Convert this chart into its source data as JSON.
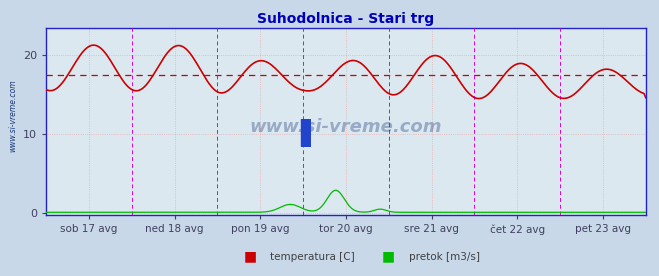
{
  "title": "Suhodolnica - Stari trg",
  "title_color": "#0000bb",
  "bg_color": "#c8d8e8",
  "plot_bg_color": "#dce8f0",
  "tick_color": "#404060",
  "yticks_left": [
    0,
    10,
    20
  ],
  "ymin": -0.3,
  "ymax": 23.5,
  "avg_line_y": 17.5,
  "avg_line_color": "#cc0000",
  "grid_color": "#e8a0a0",
  "vline_color": "#dd00dd",
  "axis_color": "#2222cc",
  "watermark": "www.si-vreme.com",
  "watermark_color": "#1a3a7a",
  "tick_labels": [
    "sob 17 avg",
    "ned 18 avg",
    "pon 19 avg",
    "tor 20 avg",
    "sre 21 avg",
    "čet 22 avg",
    "pet 23 avg"
  ],
  "legend_labels": [
    "temperatura [C]",
    "pretok [m3/s]"
  ],
  "legend_colors": [
    "#cc0000",
    "#00bb00"
  ],
  "temp_color": "#cc0000",
  "flow_color": "#00bb00",
  "n_points": 336
}
